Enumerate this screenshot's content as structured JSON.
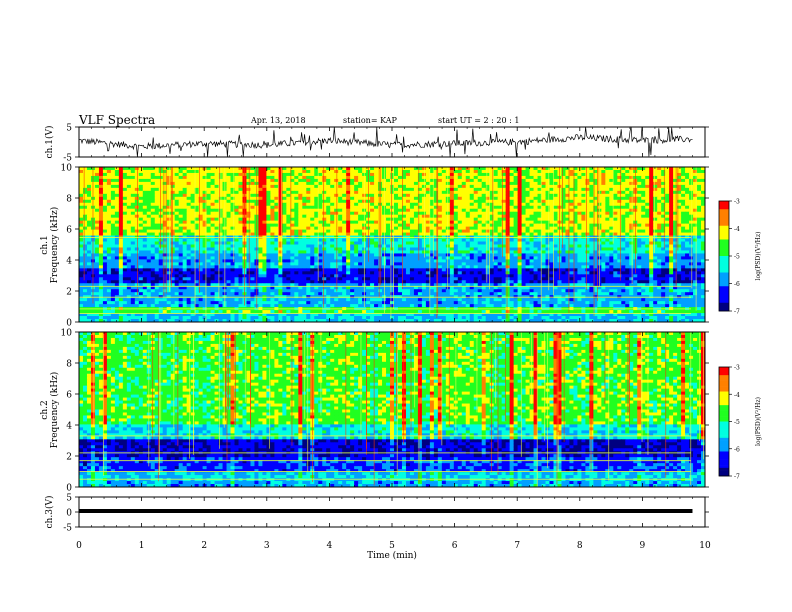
{
  "header": {
    "title": "VLF Spectra",
    "date": "Apr. 13, 2018",
    "station": "station= KAP",
    "start": "start UT =  2 : 20 : 1"
  },
  "colorbar": {
    "label": "log(PSD)(V²/Hz)",
    "ticks": [
      "-3",
      "-4",
      "-5",
      "-6",
      "-7"
    ],
    "range": [
      -7,
      -3
    ],
    "colors": [
      "#000080",
      "#0000ff",
      "#00a0ff",
      "#00ffe0",
      "#20ff20",
      "#ffff00",
      "#ff8000",
      "#ff0000",
      "#ffffff"
    ]
  },
  "chart_data": [
    {
      "type": "line",
      "panel": "ch1-waveform",
      "ylabel": "ch.1(V)",
      "ylim": [
        -5,
        5
      ],
      "yticks": [
        "5",
        "-5"
      ],
      "xlim": [
        0,
        10
      ],
      "series": [
        {
          "x": [
            0,
            1,
            2,
            3,
            4,
            5,
            6,
            7,
            8,
            9,
            9.8
          ],
          "y": [
            0.5,
            -1.5,
            -0.5,
            -1.0,
            0.5,
            -1.0,
            -0.5,
            0.0,
            1.5,
            0.5,
            1.0
          ]
        }
      ]
    },
    {
      "type": "heatmap",
      "panel": "ch1-spectrogram",
      "ylabel_top": "ch.1",
      "ylabel": "Frequency (kHz)",
      "ylim": [
        0,
        10
      ],
      "yticks": [
        "0",
        "2",
        "4",
        "6",
        "8",
        "10"
      ],
      "xlim": [
        0,
        10
      ],
      "z_range": [
        -7,
        -3
      ]
    },
    {
      "type": "heatmap",
      "panel": "ch2-spectrogram",
      "ylabel_top": "ch.2",
      "ylabel": "Frequency (kHz)",
      "ylim": [
        0,
        10
      ],
      "yticks": [
        "0",
        "2",
        "4",
        "6",
        "8",
        "10"
      ],
      "xlim": [
        0,
        10
      ],
      "z_range": [
        -7,
        -3
      ]
    },
    {
      "type": "line",
      "panel": "ch3-waveform",
      "ylabel": "ch.3(V)",
      "ylim": [
        -5,
        5
      ],
      "yticks": [
        "5",
        "0",
        "-5"
      ],
      "xlabel": "Time (min)",
      "xlim": [
        0,
        10
      ],
      "xticks": [
        "0",
        "1",
        "2",
        "3",
        "4",
        "5",
        "6",
        "7",
        "8",
        "9",
        "10"
      ],
      "series": [
        {
          "x": [
            0,
            9.8
          ],
          "y": [
            0,
            0
          ]
        }
      ]
    }
  ]
}
